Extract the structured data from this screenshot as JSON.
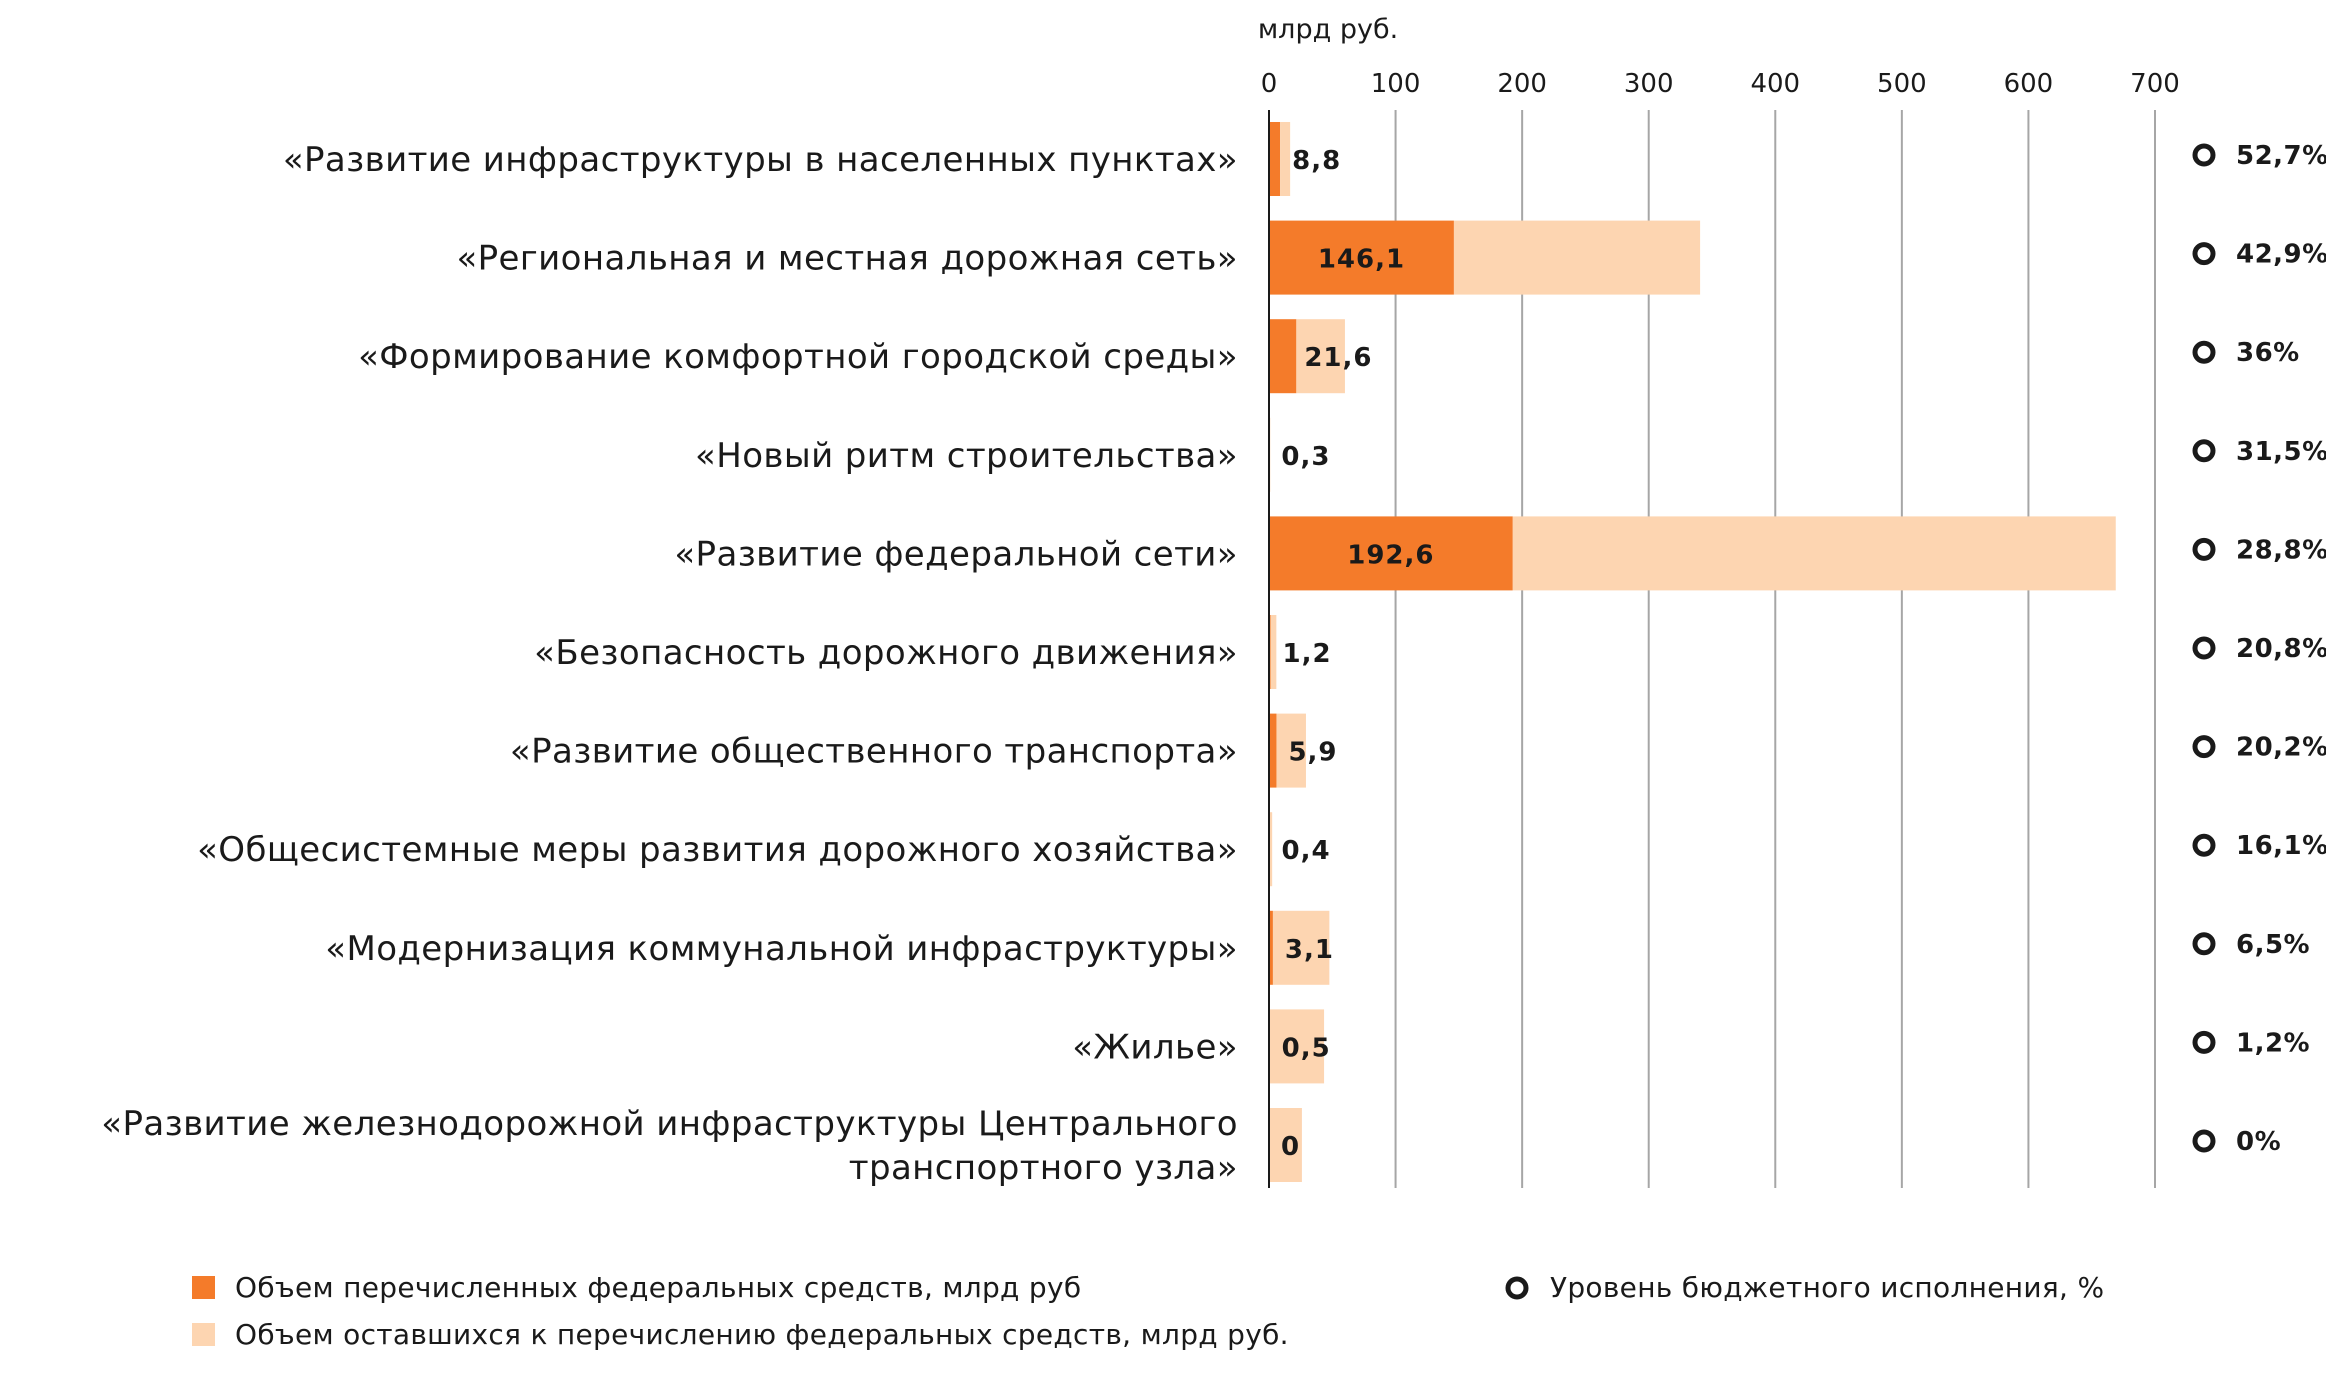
{
  "chart_data": {
    "type": "bar",
    "orientation": "horizontal",
    "stacked": true,
    "unit_label": "млрд руб.",
    "xlim": [
      0,
      700
    ],
    "x_ticks": [
      0,
      100,
      200,
      300,
      400,
      500,
      600,
      700
    ],
    "grid": true,
    "categories": [
      [
        "«Развитие инфраструктуры в населенных пунктах»"
      ],
      [
        "«Региональная и местная дорожная сеть»"
      ],
      [
        "«Формирование комфортной городской среды»"
      ],
      [
        "«Новый ритм строительства»"
      ],
      [
        "«Развитие федеральной сети»"
      ],
      [
        "«Безопасность дорожного движения»"
      ],
      [
        "«Развитие общественного транспорта»"
      ],
      [
        "«Общесистемные меры развития дорожного хозяйства»"
      ],
      [
        "«Модернизация коммунальной инфраструктуры»"
      ],
      [
        "«Жилье»"
      ],
      [
        "«Развитие железнодорожной инфраструктуры Центрального",
        "транспортного узла»"
      ]
    ],
    "series": [
      {
        "name": "Объем перечисленных федеральных средств, млрд руб",
        "color": "#f47b2a",
        "values": [
          8.8,
          146.1,
          21.6,
          0.3,
          192.6,
          1.2,
          5.9,
          0.4,
          3.1,
          0.5,
          0
        ]
      },
      {
        "name": "Объем оставшихся к перечислению федеральных средств, млрд руб.",
        "color": "#fdd5b1",
        "values": [
          7.9,
          194.5,
          38.4,
          0.7,
          476.4,
          4.6,
          23.3,
          2.1,
          44.6,
          43.0,
          26.0
        ]
      }
    ],
    "value_labels": [
      "8,8",
      "146,1",
      "21,6",
      "0,3",
      "192,6",
      "1,2",
      "5,9",
      "0,4",
      "3,1",
      "0,5",
      "0"
    ],
    "budget_execution": {
      "name": "Уровень бюджетного исполнения, %",
      "values": [
        52.7,
        42.9,
        36,
        31.5,
        28.8,
        20.8,
        20.2,
        16.1,
        6.5,
        1.2,
        0
      ],
      "labels": [
        "52,7%",
        "42,9%",
        "36%",
        "31,5%",
        "28,8%",
        "20,8%",
        "20,2%",
        "16,1%",
        "6,5%",
        "1,2%",
        "0%"
      ]
    },
    "legend_position": "bottom"
  }
}
